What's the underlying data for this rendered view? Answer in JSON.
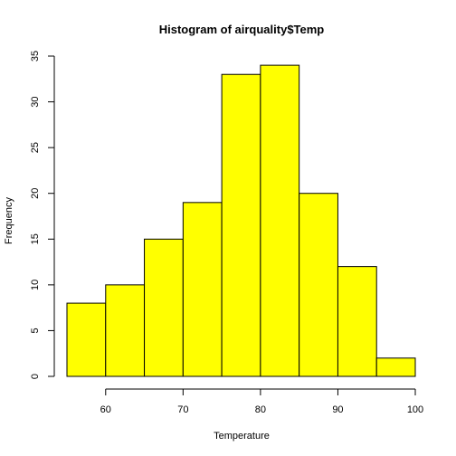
{
  "chart_data": {
    "type": "bar",
    "title": "Histogram of airquality$Temp",
    "xlabel": "Temperature",
    "ylabel": "Frequency",
    "bin_edges": [
      55,
      60,
      65,
      70,
      75,
      80,
      85,
      90,
      95,
      100
    ],
    "values": [
      8,
      10,
      15,
      19,
      33,
      34,
      20,
      12,
      2
    ],
    "xlim": [
      55,
      100
    ],
    "ylim": [
      0,
      35
    ],
    "x_ticks": [
      60,
      70,
      80,
      90,
      100
    ],
    "y_ticks": [
      0,
      5,
      10,
      15,
      20,
      25,
      30,
      35
    ],
    "bar_color": "#ffff00",
    "grid": false
  }
}
